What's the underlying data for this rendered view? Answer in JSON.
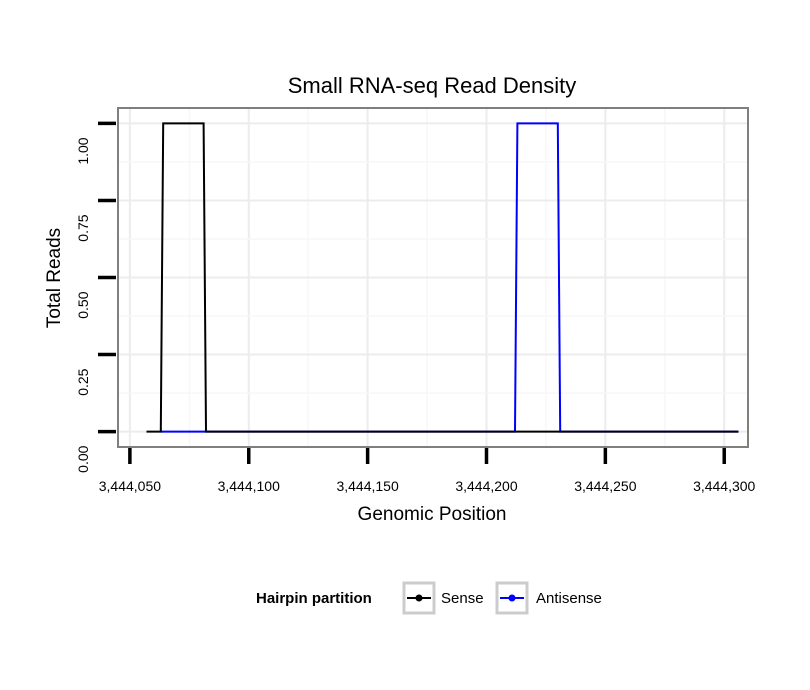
{
  "chart_data": {
    "type": "line",
    "title": "Small RNA-seq Read Density",
    "xlabel": "Genomic Position",
    "ylabel": "Total Reads",
    "xlim": [
      3444045,
      3444310
    ],
    "ylim": [
      -0.05,
      1.05
    ],
    "x_ticks": [
      3444050,
      3444100,
      3444150,
      3444200,
      3444250,
      3444300
    ],
    "x_tick_labels": [
      "3,444,050",
      "3,444,100",
      "3,444,150",
      "3,444,200",
      "3,444,250",
      "3,444,300"
    ],
    "y_ticks": [
      0,
      0.25,
      0.5,
      0.75,
      1.0
    ],
    "y_tick_labels": [
      "0.00",
      "0.25",
      "0.50",
      "0.75",
      "1.00"
    ],
    "grid": true,
    "legend": {
      "title": "Hairpin partition",
      "position": "bottom"
    },
    "series": [
      {
        "name": "Sense",
        "color": "#000000",
        "x": [
          3444057,
          3444063,
          3444064,
          3444081,
          3444082,
          3444306
        ],
        "y": [
          0,
          0,
          1,
          1,
          0,
          0
        ]
      },
      {
        "name": "Antisense",
        "color": "#0000ff",
        "x": [
          3444063,
          3444212,
          3444213,
          3444230,
          3444231,
          3444306
        ],
        "y": [
          0,
          0,
          1,
          1,
          0,
          0
        ]
      }
    ]
  }
}
